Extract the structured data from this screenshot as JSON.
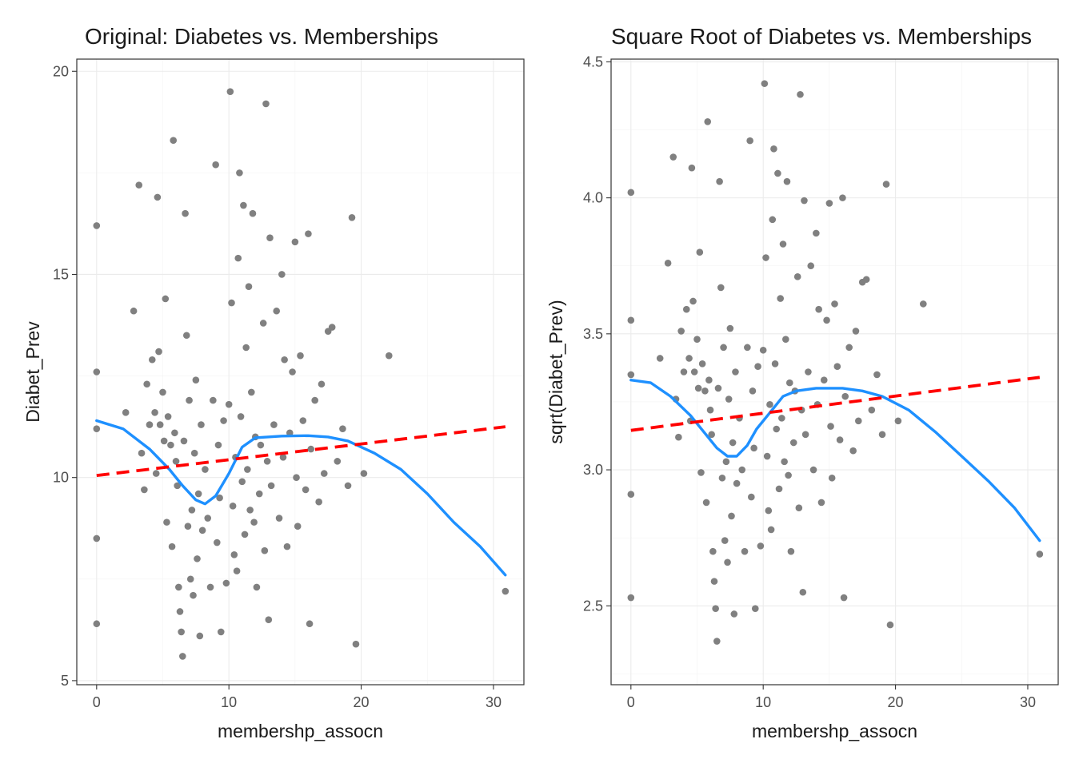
{
  "chart_data": [
    {
      "type": "scatter",
      "title": "Original: Diabetes vs. Memberships",
      "xlabel": "membershp_assocn",
      "ylabel": "Diabet_Prev",
      "xlim": [
        -1.5,
        32.3
      ],
      "ylim": [
        4.9,
        20.3
      ],
      "xticks": [
        0,
        10,
        20,
        30
      ],
      "yticks": [
        5,
        10,
        15,
        20
      ],
      "grid": true,
      "legend": "none",
      "colors": {
        "points": "#808080",
        "smooth": "#1e90ff",
        "linear": "#ff0000"
      },
      "points": [
        [
          0,
          16.2
        ],
        [
          0,
          12.6
        ],
        [
          0,
          11.2
        ],
        [
          0,
          8.5
        ],
        [
          0,
          6.4
        ],
        [
          2.2,
          11.6
        ],
        [
          2.8,
          14.1
        ],
        [
          3.2,
          17.2
        ],
        [
          3.4,
          10.6
        ],
        [
          3.6,
          9.7
        ],
        [
          3.8,
          12.3
        ],
        [
          4.0,
          11.3
        ],
        [
          4.2,
          12.9
        ],
        [
          4.4,
          11.6
        ],
        [
          4.5,
          10.1
        ],
        [
          4.6,
          16.9
        ],
        [
          4.7,
          13.1
        ],
        [
          4.8,
          11.3
        ],
        [
          5.0,
          12.1
        ],
        [
          5.1,
          10.9
        ],
        [
          5.2,
          14.4
        ],
        [
          5.3,
          8.9
        ],
        [
          5.4,
          11.5
        ],
        [
          5.6,
          10.8
        ],
        [
          5.7,
          8.3
        ],
        [
          5.8,
          18.3
        ],
        [
          5.9,
          11.1
        ],
        [
          6.0,
          10.4
        ],
        [
          6.1,
          9.8
        ],
        [
          6.2,
          7.3
        ],
        [
          6.3,
          6.7
        ],
        [
          6.4,
          6.2
        ],
        [
          6.5,
          5.6
        ],
        [
          6.6,
          10.9
        ],
        [
          6.7,
          16.5
        ],
        [
          6.8,
          13.5
        ],
        [
          6.9,
          8.8
        ],
        [
          7.0,
          11.9
        ],
        [
          7.1,
          7.5
        ],
        [
          7.2,
          9.2
        ],
        [
          7.3,
          7.1
        ],
        [
          7.4,
          10.6
        ],
        [
          7.5,
          12.4
        ],
        [
          7.6,
          8.0
        ],
        [
          7.7,
          9.6
        ],
        [
          7.8,
          6.1
        ],
        [
          7.9,
          11.3
        ],
        [
          8.0,
          8.7
        ],
        [
          8.2,
          10.2
        ],
        [
          8.4,
          9.0
        ],
        [
          8.6,
          7.3
        ],
        [
          8.8,
          11.9
        ],
        [
          9.0,
          17.7
        ],
        [
          9.1,
          8.4
        ],
        [
          9.2,
          10.8
        ],
        [
          9.3,
          9.5
        ],
        [
          9.4,
          6.2
        ],
        [
          9.6,
          11.4
        ],
        [
          9.8,
          7.4
        ],
        [
          10.0,
          11.8
        ],
        [
          10.1,
          19.5
        ],
        [
          10.2,
          14.3
        ],
        [
          10.3,
          9.3
        ],
        [
          10.4,
          8.1
        ],
        [
          10.5,
          10.5
        ],
        [
          10.6,
          7.7
        ],
        [
          10.7,
          15.4
        ],
        [
          10.8,
          17.5
        ],
        [
          10.9,
          11.5
        ],
        [
          11.0,
          9.9
        ],
        [
          11.1,
          16.7
        ],
        [
          11.2,
          8.6
        ],
        [
          11.3,
          13.2
        ],
        [
          11.4,
          10.2
        ],
        [
          11.5,
          14.7
        ],
        [
          11.6,
          9.2
        ],
        [
          11.7,
          12.1
        ],
        [
          11.8,
          16.5
        ],
        [
          11.9,
          8.9
        ],
        [
          12.0,
          11.0
        ],
        [
          12.1,
          7.3
        ],
        [
          12.3,
          9.6
        ],
        [
          12.4,
          10.8
        ],
        [
          12.6,
          13.8
        ],
        [
          12.7,
          8.2
        ],
        [
          12.8,
          19.2
        ],
        [
          12.9,
          10.4
        ],
        [
          13.0,
          6.5
        ],
        [
          13.1,
          15.9
        ],
        [
          13.2,
          9.8
        ],
        [
          13.4,
          11.3
        ],
        [
          13.6,
          14.1
        ],
        [
          13.8,
          9.0
        ],
        [
          14.0,
          15.0
        ],
        [
          14.1,
          10.5
        ],
        [
          14.2,
          12.9
        ],
        [
          14.4,
          8.3
        ],
        [
          14.6,
          11.1
        ],
        [
          14.8,
          12.6
        ],
        [
          15.0,
          15.8
        ],
        [
          15.1,
          10.0
        ],
        [
          15.2,
          8.8
        ],
        [
          15.4,
          13.0
        ],
        [
          15.6,
          11.4
        ],
        [
          15.8,
          9.7
        ],
        [
          16.0,
          16.0
        ],
        [
          16.1,
          6.4
        ],
        [
          16.2,
          10.7
        ],
        [
          16.5,
          11.9
        ],
        [
          16.8,
          9.4
        ],
        [
          17.0,
          12.3
        ],
        [
          17.2,
          10.1
        ],
        [
          17.5,
          13.6
        ],
        [
          17.8,
          13.7
        ],
        [
          18.2,
          10.4
        ],
        [
          18.6,
          11.2
        ],
        [
          19.0,
          9.8
        ],
        [
          19.3,
          16.4
        ],
        [
          19.6,
          5.9
        ],
        [
          20.2,
          10.1
        ],
        [
          22.1,
          13.0
        ],
        [
          30.9,
          7.2
        ]
      ],
      "smooth": [
        [
          0,
          11.4
        ],
        [
          2,
          11.2
        ],
        [
          4,
          10.7
        ],
        [
          5.5,
          10.2
        ],
        [
          6.5,
          9.8
        ],
        [
          7.5,
          9.45
        ],
        [
          8.2,
          9.35
        ],
        [
          9,
          9.55
        ],
        [
          10,
          10.1
        ],
        [
          11,
          10.75
        ],
        [
          12,
          10.98
        ],
        [
          14,
          11.02
        ],
        [
          16,
          11.03
        ],
        [
          17.5,
          11.0
        ],
        [
          19,
          10.9
        ],
        [
          21,
          10.6
        ],
        [
          23,
          10.2
        ],
        [
          25,
          9.6
        ],
        [
          27,
          8.9
        ],
        [
          29,
          8.3
        ],
        [
          30.9,
          7.6
        ]
      ],
      "linear": [
        [
          0,
          10.05
        ],
        [
          30.9,
          11.25
        ]
      ]
    },
    {
      "type": "scatter",
      "title": "Square Root of Diabetes vs. Memberships",
      "xlabel": "membershp_assocn",
      "ylabel": "sqrt(Diabet_Prev)",
      "xlim": [
        -1.5,
        32.3
      ],
      "ylim": [
        2.21,
        4.51
      ],
      "xticks": [
        0,
        10,
        20,
        30
      ],
      "yticks": [
        2.5,
        3.0,
        3.5,
        4.0,
        4.5
      ],
      "ytick_labels": [
        "2.5",
        "3.0",
        "3.5",
        "4.0",
        "4.5"
      ],
      "grid": true,
      "legend": "none",
      "colors": {
        "points": "#808080",
        "smooth": "#1e90ff",
        "linear": "#ff0000"
      },
      "points": [
        [
          0,
          4.02
        ],
        [
          0,
          3.55
        ],
        [
          0,
          3.35
        ],
        [
          0,
          2.91
        ],
        [
          0,
          2.53
        ],
        [
          2.2,
          3.41
        ],
        [
          2.8,
          3.76
        ],
        [
          3.2,
          4.15
        ],
        [
          3.4,
          3.26
        ],
        [
          3.6,
          3.12
        ],
        [
          3.8,
          3.51
        ],
        [
          4.0,
          3.36
        ],
        [
          4.2,
          3.59
        ],
        [
          4.4,
          3.41
        ],
        [
          4.5,
          3.18
        ],
        [
          4.6,
          4.11
        ],
        [
          4.7,
          3.62
        ],
        [
          4.8,
          3.36
        ],
        [
          5.0,
          3.48
        ],
        [
          5.1,
          3.3
        ],
        [
          5.2,
          3.8
        ],
        [
          5.3,
          2.99
        ],
        [
          5.4,
          3.39
        ],
        [
          5.6,
          3.29
        ],
        [
          5.7,
          2.88
        ],
        [
          5.8,
          4.28
        ],
        [
          5.9,
          3.33
        ],
        [
          6.0,
          3.22
        ],
        [
          6.1,
          3.13
        ],
        [
          6.2,
          2.7
        ],
        [
          6.3,
          2.59
        ],
        [
          6.4,
          2.49
        ],
        [
          6.5,
          2.37
        ],
        [
          6.6,
          3.3
        ],
        [
          6.7,
          4.06
        ],
        [
          6.8,
          3.67
        ],
        [
          6.9,
          2.97
        ],
        [
          7.0,
          3.45
        ],
        [
          7.1,
          2.74
        ],
        [
          7.2,
          3.03
        ],
        [
          7.3,
          2.66
        ],
        [
          7.4,
          3.26
        ],
        [
          7.5,
          3.52
        ],
        [
          7.6,
          2.83
        ],
        [
          7.7,
          3.1
        ],
        [
          7.8,
          2.47
        ],
        [
          7.9,
          3.36
        ],
        [
          8.0,
          2.95
        ],
        [
          8.2,
          3.19
        ],
        [
          8.4,
          3.0
        ],
        [
          8.6,
          2.7
        ],
        [
          8.8,
          3.45
        ],
        [
          9.0,
          4.21
        ],
        [
          9.1,
          2.9
        ],
        [
          9.2,
          3.29
        ],
        [
          9.3,
          3.08
        ],
        [
          9.4,
          2.49
        ],
        [
          9.6,
          3.38
        ],
        [
          9.8,
          2.72
        ],
        [
          10.0,
          3.44
        ],
        [
          10.1,
          4.42
        ],
        [
          10.2,
          3.78
        ],
        [
          10.3,
          3.05
        ],
        [
          10.4,
          2.85
        ],
        [
          10.5,
          3.24
        ],
        [
          10.6,
          2.78
        ],
        [
          10.7,
          3.92
        ],
        [
          10.8,
          4.18
        ],
        [
          10.9,
          3.39
        ],
        [
          11.0,
          3.15
        ],
        [
          11.1,
          4.09
        ],
        [
          11.2,
          2.93
        ],
        [
          11.3,
          3.63
        ],
        [
          11.4,
          3.19
        ],
        [
          11.5,
          3.83
        ],
        [
          11.6,
          3.03
        ],
        [
          11.7,
          3.48
        ],
        [
          11.8,
          4.06
        ],
        [
          11.9,
          2.98
        ],
        [
          12.0,
          3.32
        ],
        [
          12.1,
          2.7
        ],
        [
          12.3,
          3.1
        ],
        [
          12.4,
          3.29
        ],
        [
          12.6,
          3.71
        ],
        [
          12.7,
          2.86
        ],
        [
          12.8,
          4.38
        ],
        [
          12.9,
          3.22
        ],
        [
          13.0,
          2.55
        ],
        [
          13.1,
          3.99
        ],
        [
          13.2,
          3.13
        ],
        [
          13.4,
          3.36
        ],
        [
          13.6,
          3.75
        ],
        [
          13.8,
          3.0
        ],
        [
          14.0,
          3.87
        ],
        [
          14.1,
          3.24
        ],
        [
          14.2,
          3.59
        ],
        [
          14.4,
          2.88
        ],
        [
          14.6,
          3.33
        ],
        [
          14.8,
          3.55
        ],
        [
          15.0,
          3.98
        ],
        [
          15.1,
          3.16
        ],
        [
          15.2,
          2.97
        ],
        [
          15.4,
          3.61
        ],
        [
          15.6,
          3.38
        ],
        [
          15.8,
          3.11
        ],
        [
          16.0,
          4.0
        ],
        [
          16.1,
          2.53
        ],
        [
          16.2,
          3.27
        ],
        [
          16.5,
          3.45
        ],
        [
          16.8,
          3.07
        ],
        [
          17.0,
          3.51
        ],
        [
          17.2,
          3.18
        ],
        [
          17.5,
          3.69
        ],
        [
          17.8,
          3.7
        ],
        [
          18.2,
          3.22
        ],
        [
          18.6,
          3.35
        ],
        [
          19.0,
          3.13
        ],
        [
          19.3,
          4.05
        ],
        [
          19.6,
          2.43
        ],
        [
          20.2,
          3.18
        ],
        [
          22.1,
          3.61
        ],
        [
          30.9,
          2.69
        ]
      ],
      "smooth": [
        [
          0,
          3.33
        ],
        [
          1.5,
          3.32
        ],
        [
          3,
          3.27
        ],
        [
          4.5,
          3.2
        ],
        [
          5.5,
          3.14
        ],
        [
          6.5,
          3.08
        ],
        [
          7.3,
          3.05
        ],
        [
          8,
          3.05
        ],
        [
          8.8,
          3.09
        ],
        [
          9.5,
          3.15
        ],
        [
          10.5,
          3.21
        ],
        [
          11.5,
          3.27
        ],
        [
          12.5,
          3.29
        ],
        [
          14,
          3.3
        ],
        [
          16,
          3.3
        ],
        [
          17.5,
          3.29
        ],
        [
          19,
          3.27
        ],
        [
          21,
          3.22
        ],
        [
          23,
          3.14
        ],
        [
          25,
          3.05
        ],
        [
          27,
          2.96
        ],
        [
          29,
          2.86
        ],
        [
          30.9,
          2.74
        ]
      ],
      "linear": [
        [
          0,
          3.145
        ],
        [
          30.9,
          3.34
        ]
      ]
    }
  ]
}
